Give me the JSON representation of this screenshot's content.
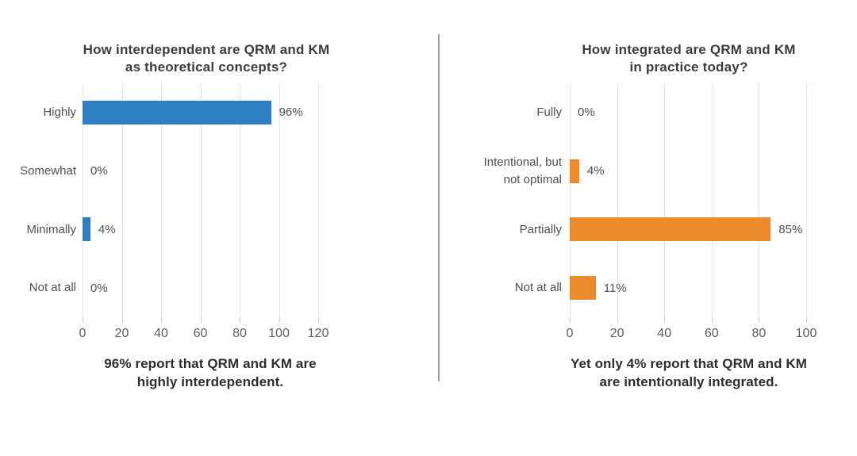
{
  "chart_data": [
    {
      "type": "bar",
      "orientation": "horizontal",
      "title": "How interdependent are QRM and KM as theoretical concepts?",
      "title_lines": [
        "How interdependent are QRM and KM",
        "as theoretical concepts?"
      ],
      "categories": [
        "Highly",
        "Somewhat",
        "Minimally",
        "Not at all"
      ],
      "values": [
        96,
        0,
        4,
        0
      ],
      "value_labels": [
        "96%",
        "0%",
        "4%",
        "0%"
      ],
      "x_ticks": [
        "0",
        "20",
        "40",
        "60",
        "80",
        "100",
        "120"
      ],
      "xlim": [
        0,
        120
      ],
      "grid": true,
      "legend": "none",
      "bar_color": "#2b7fc2",
      "caption": "96% report that QRM and KM are highly interdependent.",
      "caption_lines": [
        "96% report that QRM and KM are",
        "highly interdependent."
      ]
    },
    {
      "type": "bar",
      "orientation": "horizontal",
      "title": "How integrated are QRM and KM in practice today?",
      "title_lines": [
        "How integrated are QRM and KM",
        "in practice today?"
      ],
      "categories": [
        "Fully",
        "Intentional, but\nnot optimal",
        "Partially",
        "Not at all"
      ],
      "values": [
        0,
        4,
        85,
        11
      ],
      "value_labels": [
        "0%",
        "4%",
        "85%",
        "11%"
      ],
      "x_ticks": [
        "0",
        "20",
        "40",
        "60",
        "80",
        "100"
      ],
      "xlim": [
        0,
        100
      ],
      "grid": true,
      "legend": "none",
      "bar_color": "#ec8b2d",
      "caption": "Yet only 4% report that QRM and KM are intentionally integrated.",
      "caption_lines": [
        "Yet only 4% report that QRM and KM",
        "are intentionally integrated."
      ]
    }
  ],
  "colors": {
    "blue_bar": "#2b7fc2",
    "orange_bar": "#ec8b2d",
    "gridline": "#e4e4e4",
    "divider": "#9e9e9e",
    "title_text": "#3c3c3c",
    "label_text": "#4e4e4e",
    "caption_text": "#2d2d2d"
  }
}
